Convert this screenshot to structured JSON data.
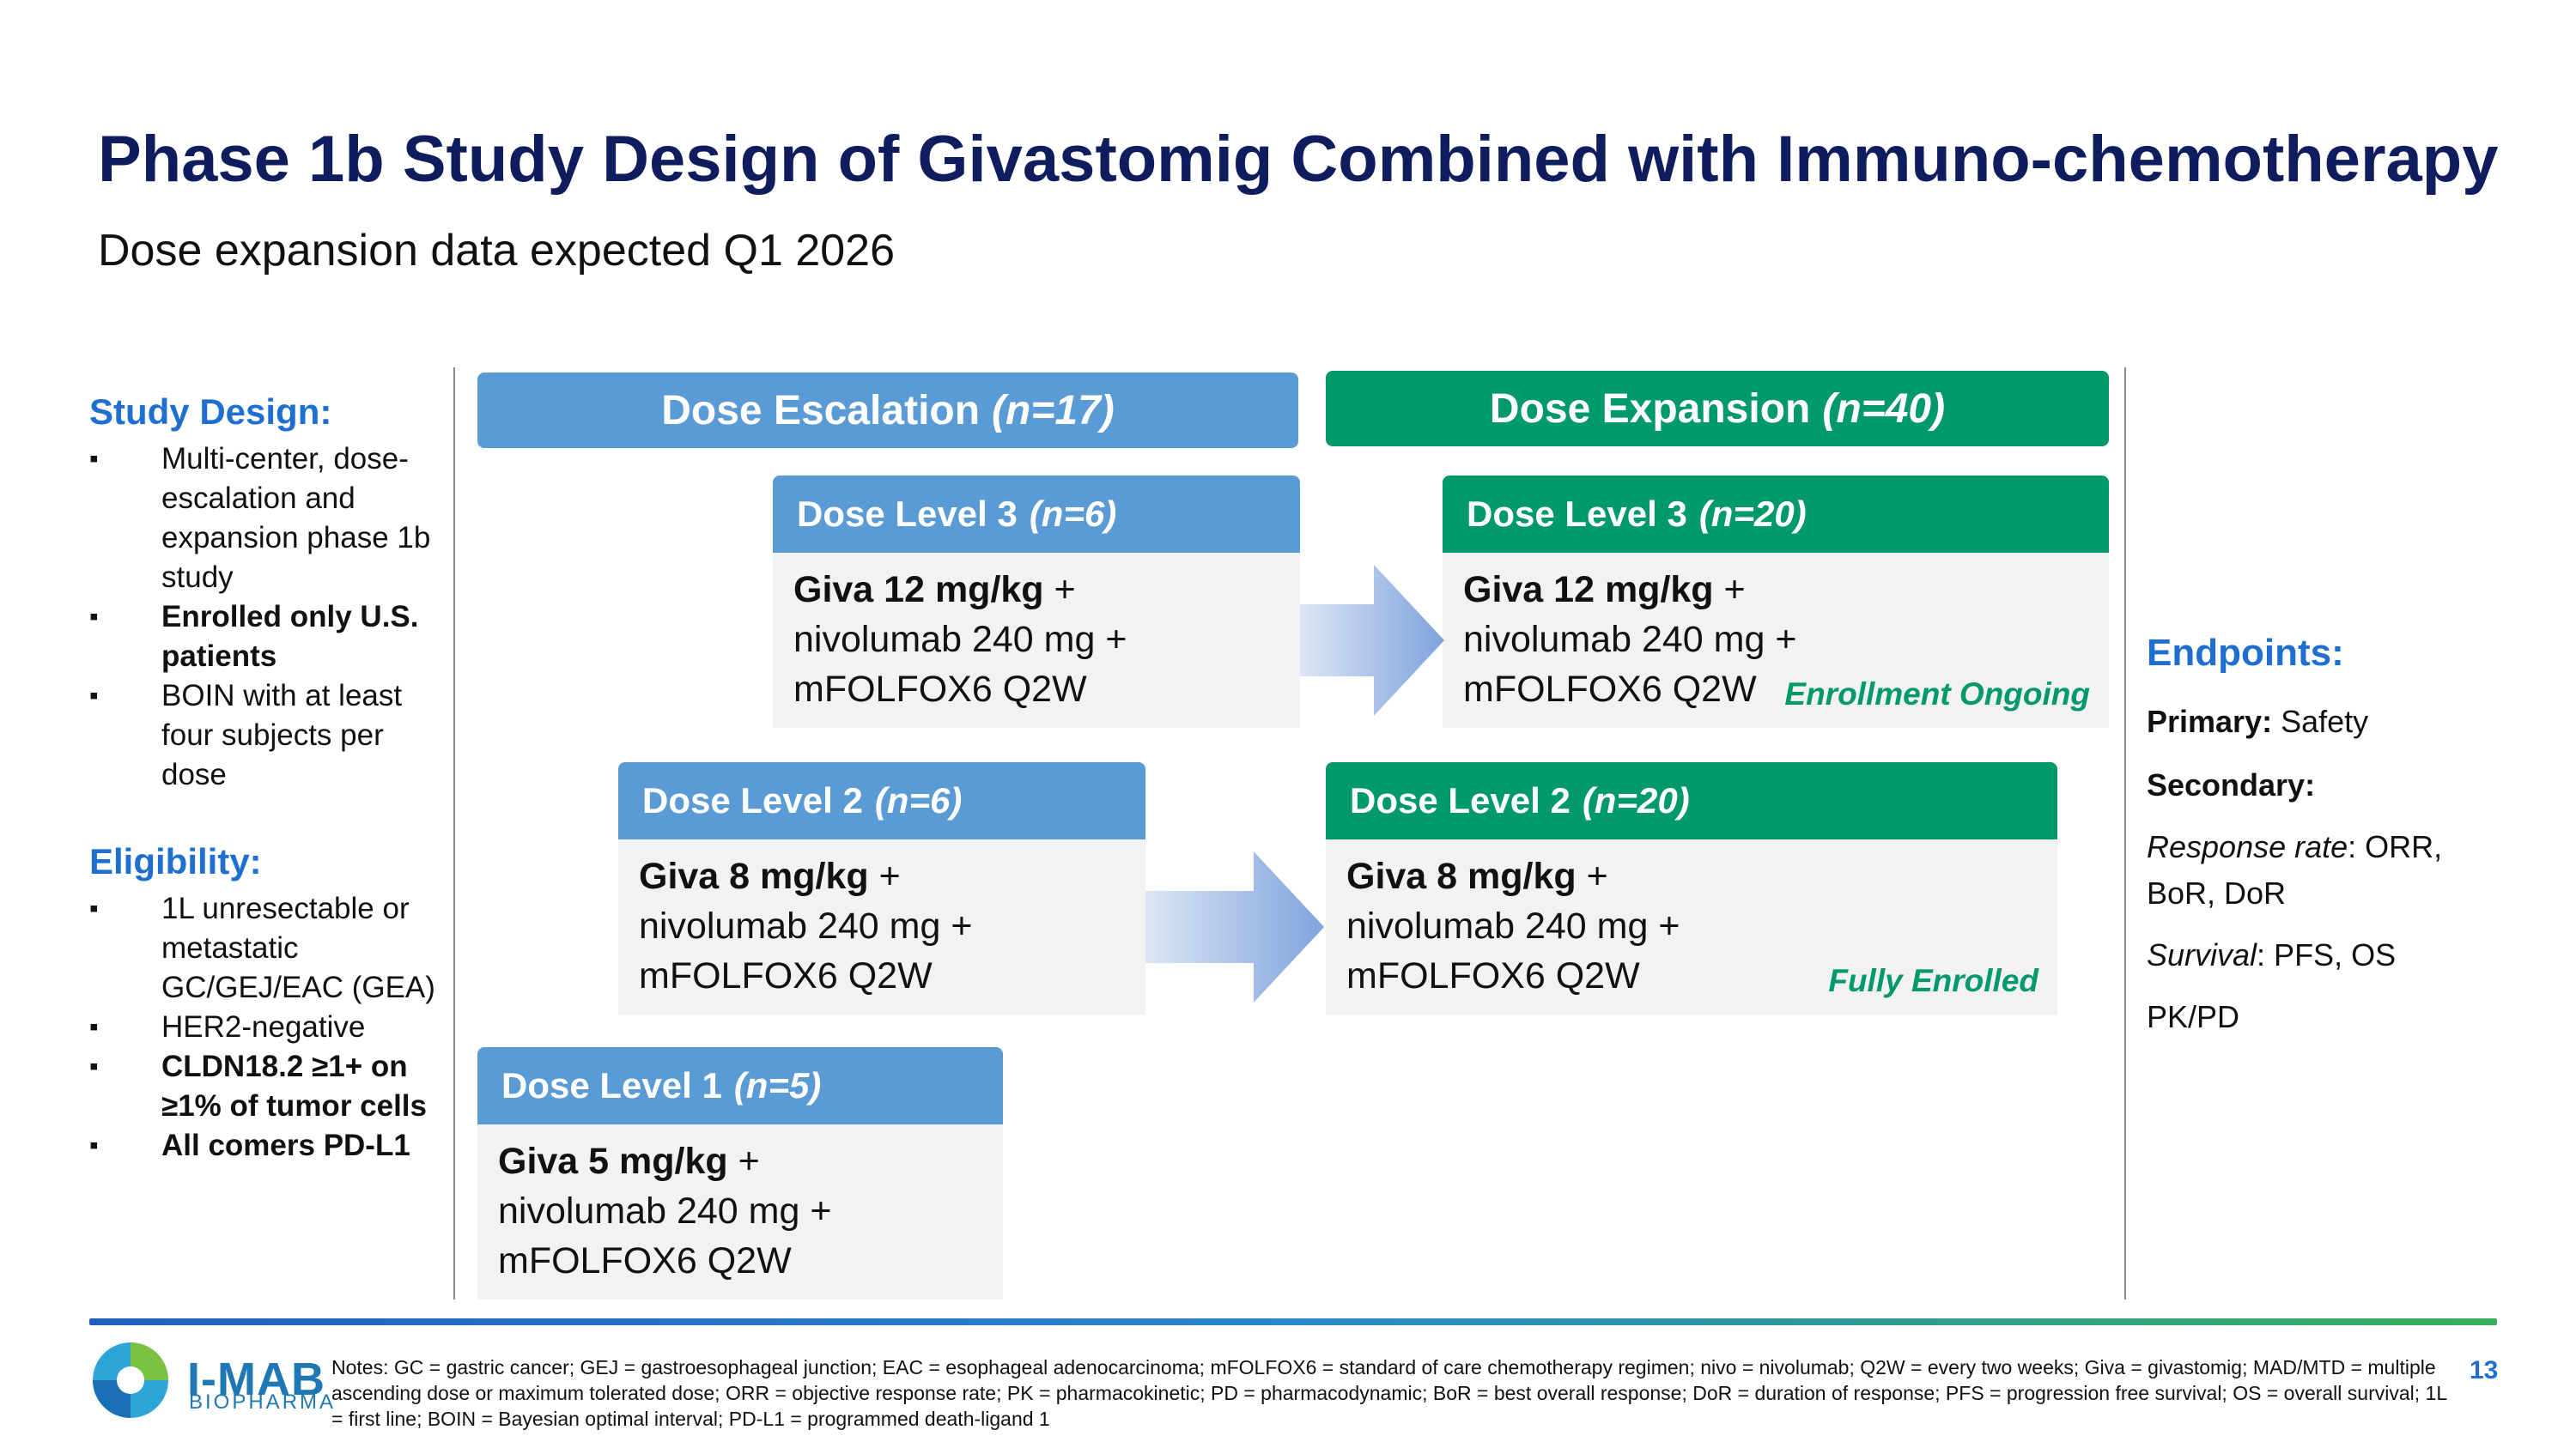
{
  "title": "Phase 1b Study Design of Givastomig Combined with Immuno-chemotherapy",
  "subtitle": "Dose expansion data expected Q1 2026",
  "study_design": {
    "heading": "Study Design:",
    "items": [
      {
        "text": "Multi-center, dose-escalation and expansion phase 1b study"
      },
      {
        "text": "Enrolled only U.S. patients"
      },
      {
        "text": "BOIN with at least four subjects per dose"
      }
    ]
  },
  "eligibility": {
    "heading": "Eligibility:",
    "items": [
      {
        "text": "1L unresectable or metastatic GC/GEJ/EAC (GEA)"
      },
      {
        "text": "HER2-negative"
      },
      {
        "text": "CLDN18.2 ≥1+ on ≥1% of tumor cells"
      },
      {
        "text": "All comers PD-L1"
      }
    ]
  },
  "escalation": {
    "label": "Dose Escalation",
    "n": "(n=17)"
  },
  "expansion": {
    "label": "Dose Expansion",
    "n": "(n=40)"
  },
  "dose_levels": {
    "esc3": {
      "label": "Dose Level 3",
      "n": "(n=6)",
      "drug": "Giva 12 mg/kg",
      "plus": " +",
      "line2": "nivolumab 240 mg +",
      "line3": "mFOLFOX6 Q2W"
    },
    "esc2": {
      "label": "Dose Level 2",
      "n": "(n=6)",
      "drug": "Giva 8 mg/kg",
      "plus": " +",
      "line2": "nivolumab 240 mg +",
      "line3": "mFOLFOX6 Q2W"
    },
    "esc1": {
      "label": "Dose Level 1",
      "n": "(n=5)",
      "drug": "Giva 5 mg/kg",
      "plus": " +",
      "line2": "nivolumab 240 mg +",
      "line3": "mFOLFOX6 Q2W"
    },
    "exp3": {
      "label": "Dose Level 3",
      "n": "(n=20)",
      "drug": "Giva 12 mg/kg",
      "plus": " +",
      "line2": "nivolumab 240 mg +",
      "line3": "mFOLFOX6 Q2W",
      "status": "Enrollment Ongoing"
    },
    "exp2": {
      "label": "Dose Level 2",
      "n": "(n=20)",
      "drug": "Giva 8 mg/kg",
      "plus": " +",
      "line2": "nivolumab 240 mg +",
      "line3": "mFOLFOX6 Q2W",
      "status": "Fully Enrolled"
    }
  },
  "endpoints": {
    "heading": "Endpoints:",
    "primary_label": "Primary:",
    "primary_value": " Safety",
    "secondary_label": "Secondary:",
    "response_label": "Response rate",
    "response_value": ": ORR,",
    "response_value2": "BoR, DoR",
    "survival_label": "Survival",
    "survival_value": ": PFS, OS",
    "pkpd": "PK/PD"
  },
  "footer": {
    "logo": "I-MAB",
    "logo_sub": "BIOPHARMA",
    "notes": "Notes: GC = gastric cancer; GEJ = gastroesophageal junction; EAC = esophageal adenocarcinoma; mFOLFOX6 = standard of care chemotherapy regimen; nivo = nivolumab; Q2W = every two weeks; Giva = givastomig; MAD/MTD = multiple ascending dose or maximum tolerated dose; ORR = objective response rate; PK = pharmacokinetic; PD = pharmacodynamic; BoR = best overall response; DoR = duration of response; PFS = progression free survival; OS = overall survival; 1L = first line; BOIN = Bayesian optimal interval; PD-L1 = programmed death-ligand 1",
    "page_number": "13"
  },
  "colors": {
    "title": "#0f1c5e",
    "blue": "#5b9bd5",
    "green": "#00996b",
    "heading_blue": "#1f6fd0"
  }
}
